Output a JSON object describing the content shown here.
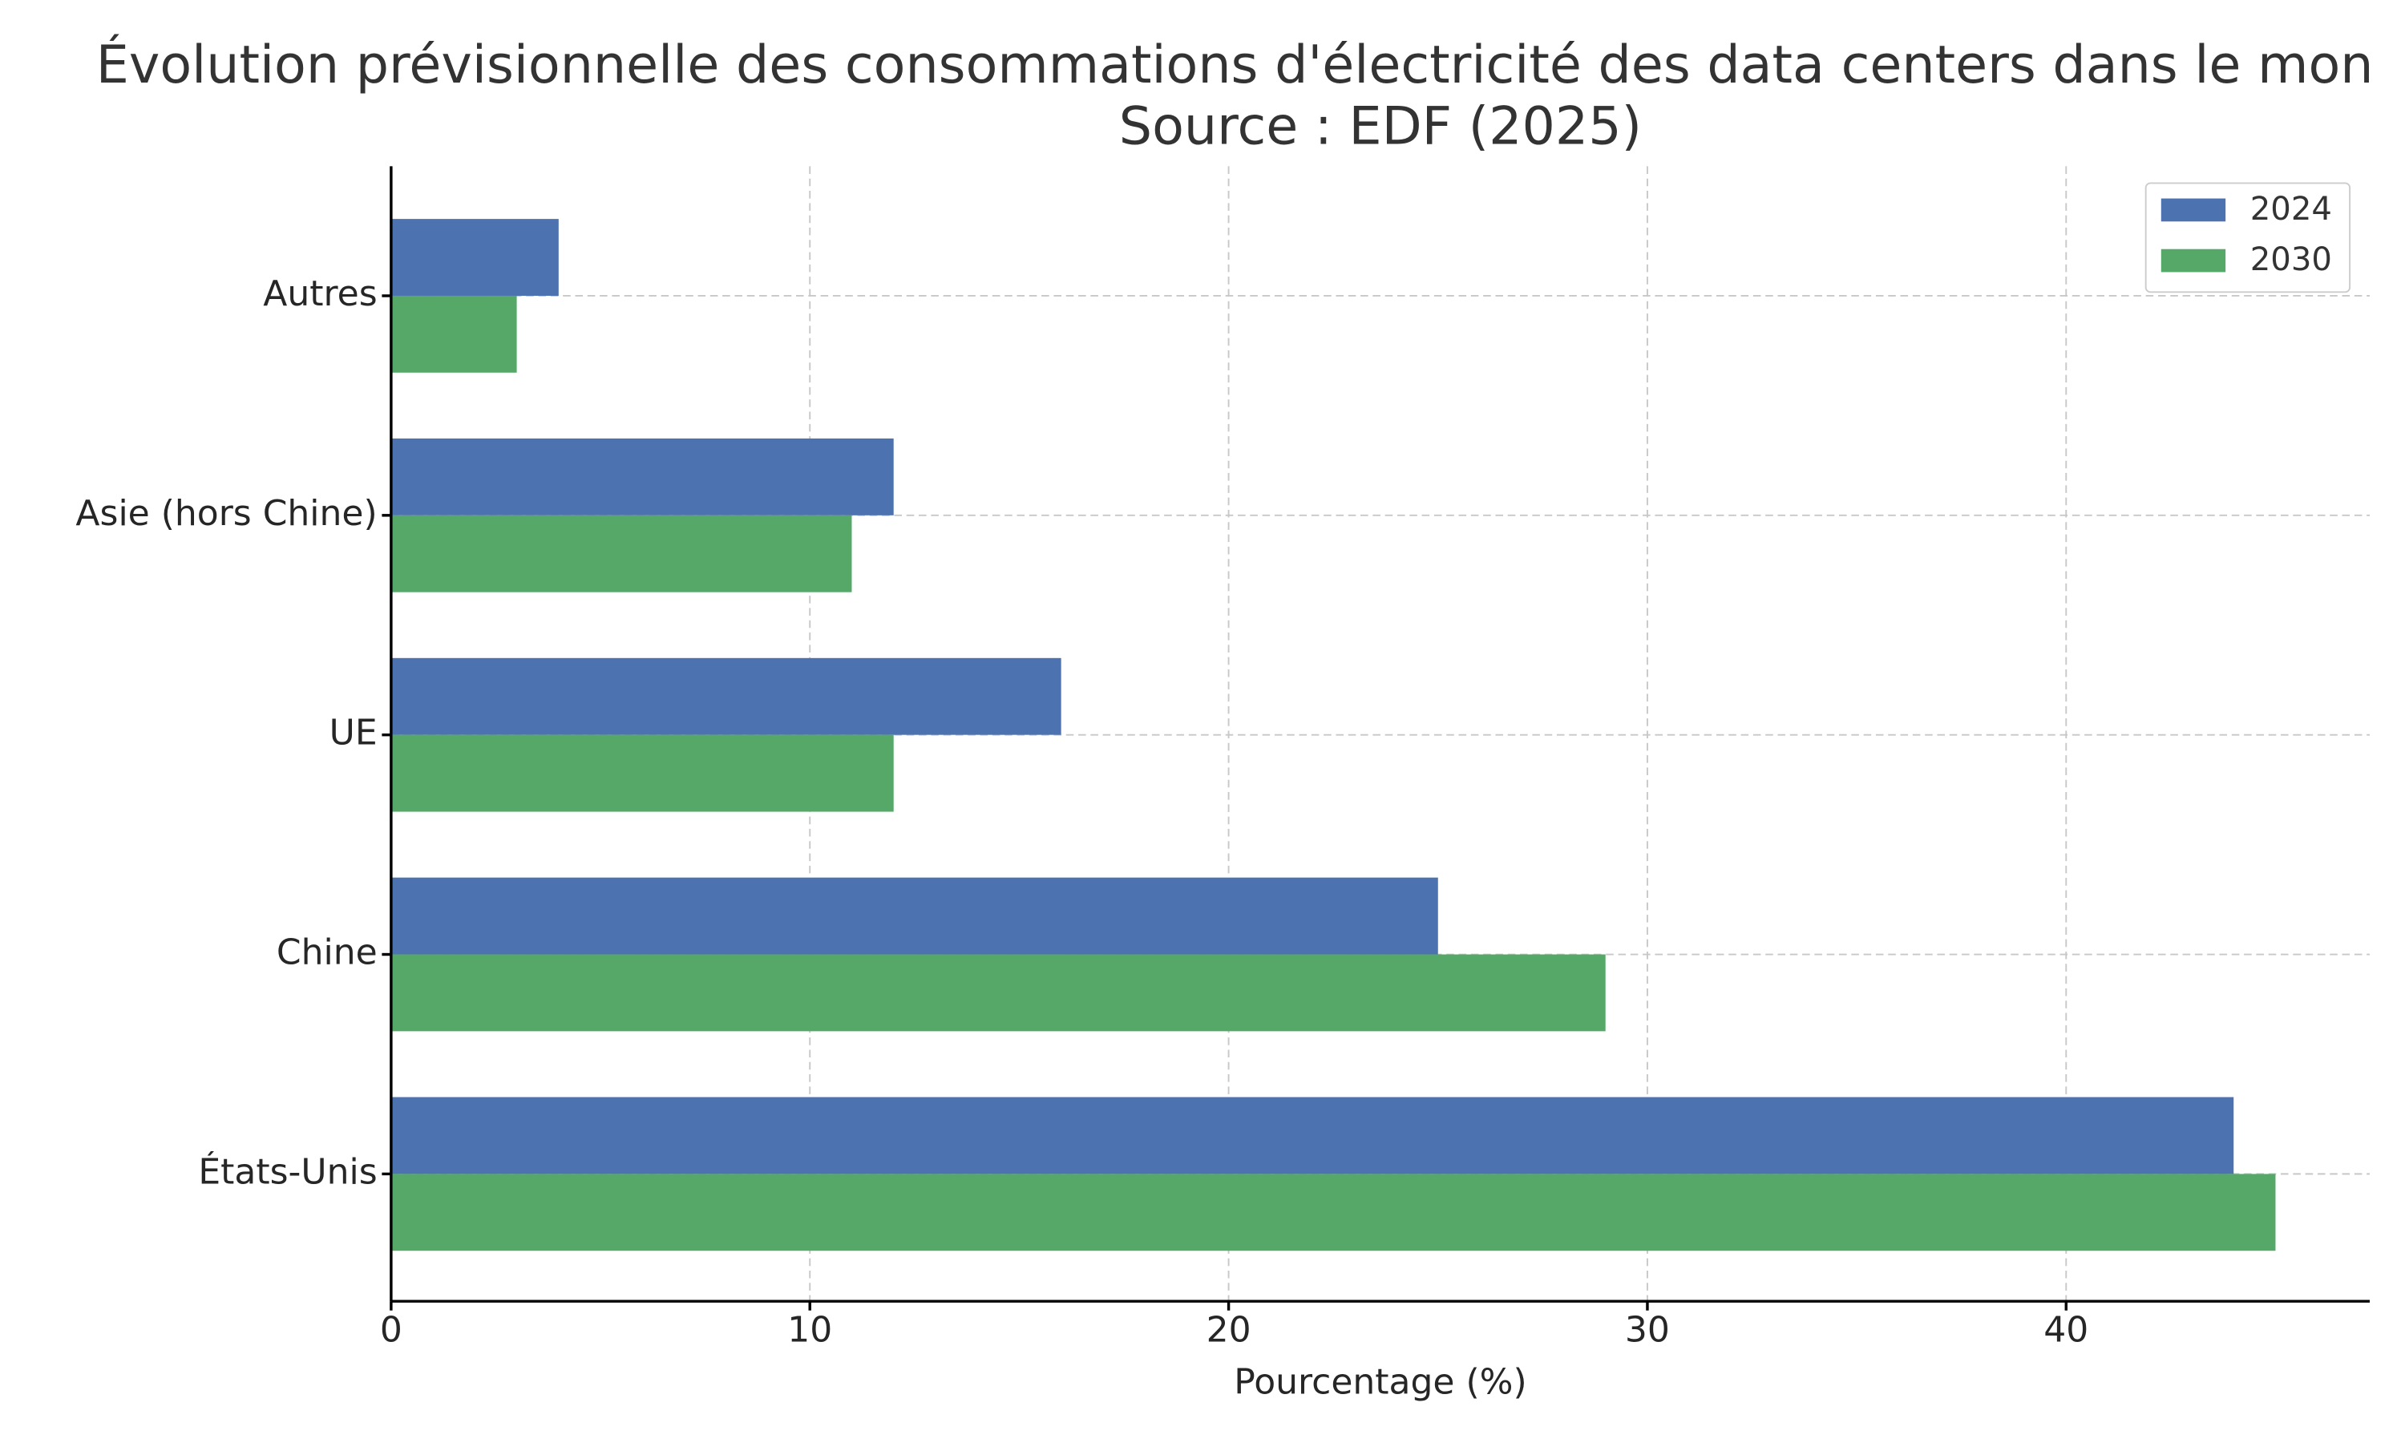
{
  "chart_data": {
    "type": "barh",
    "title": "Évolution prévisionnelle des consommations d'électricité des data centers dans le mon",
    "subtitle": "Source : EDF (2025)",
    "x_label": "Pourcentage (%)",
    "categories": [
      "États-Unis",
      "Chine",
      "UE",
      "Asie (hors Chine)",
      "Autres"
    ],
    "series": [
      {
        "name": "2024",
        "color": "#4c72b0",
        "values": [
          44,
          25,
          16,
          12,
          4
        ]
      },
      {
        "name": "2030",
        "color": "#55a868",
        "values": [
          45,
          29,
          12,
          11,
          3
        ]
      }
    ],
    "xlim": [
      0,
      47.25
    ],
    "xticks": [
      0,
      10,
      20,
      30,
      40
    ],
    "grid": true,
    "legend": "upper right"
  }
}
